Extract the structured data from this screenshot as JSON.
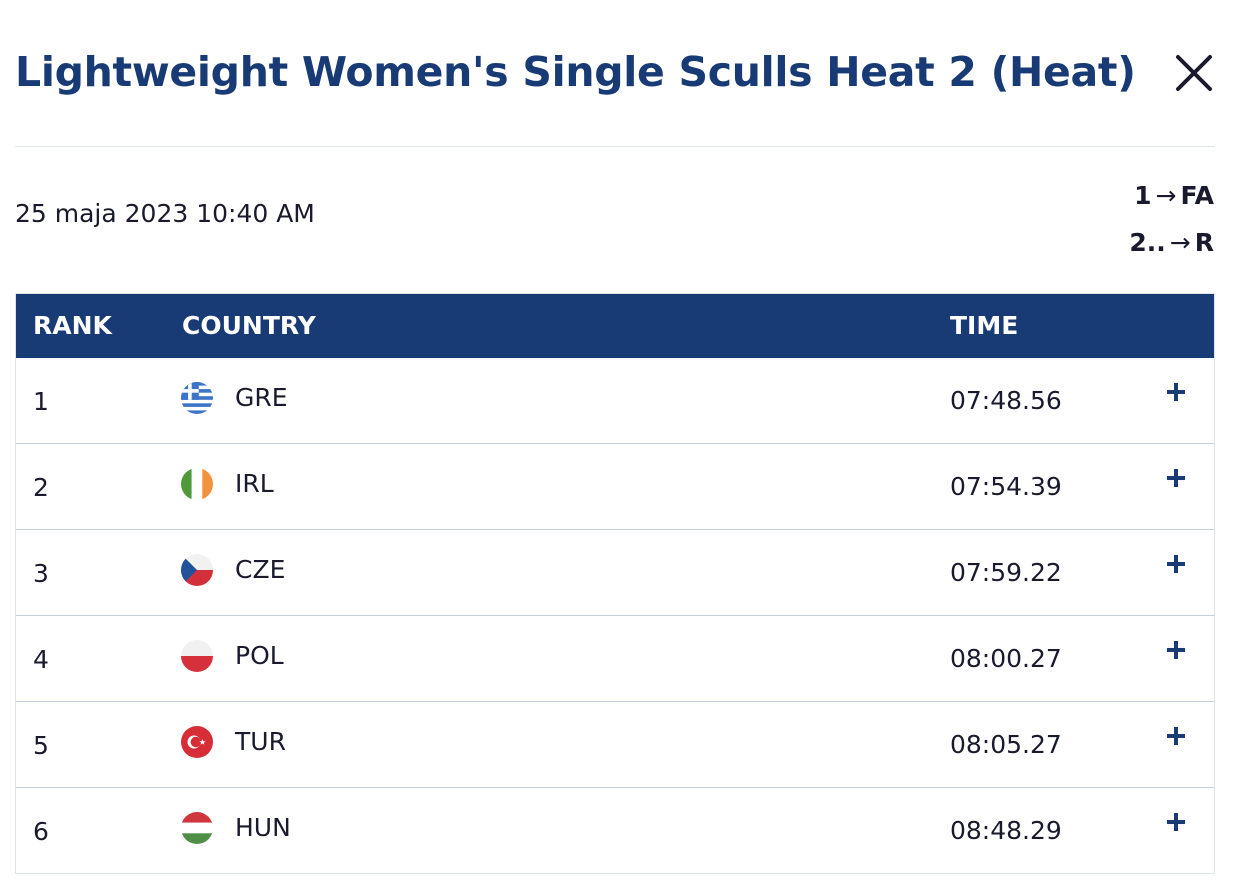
{
  "header": {
    "title": "Lightweight Women's Single Sculls Heat 2 (Heat)",
    "close_icon": "close-icon"
  },
  "meta": {
    "date": "25 maja 2023 10:40 AM",
    "progression": [
      {
        "from": "1",
        "arrow": "→",
        "to": "FA"
      },
      {
        "from": "2..",
        "arrow": "→",
        "to": "R"
      }
    ]
  },
  "table": {
    "headers": {
      "rank": "RANK",
      "country": "COUNTRY",
      "time": "TIME"
    },
    "rows": [
      {
        "rank": "1",
        "country": "GRE",
        "time": "07:48.56",
        "flag_icon": "greece-flag-icon"
      },
      {
        "rank": "2",
        "country": "IRL",
        "time": "07:54.39",
        "flag_icon": "ireland-flag-icon"
      },
      {
        "rank": "3",
        "country": "CZE",
        "time": "07:59.22",
        "flag_icon": "czechia-flag-icon"
      },
      {
        "rank": "4",
        "country": "POL",
        "time": "08:00.27",
        "flag_icon": "poland-flag-icon"
      },
      {
        "rank": "5",
        "country": "TUR",
        "time": "08:05.27",
        "flag_icon": "turkey-flag-icon"
      },
      {
        "rank": "6",
        "country": "HUN",
        "time": "08:48.29",
        "flag_icon": "hungary-flag-icon"
      }
    ]
  },
  "colors": {
    "brand_navy": "#183a75",
    "row_divider": "#c7cfdb"
  }
}
